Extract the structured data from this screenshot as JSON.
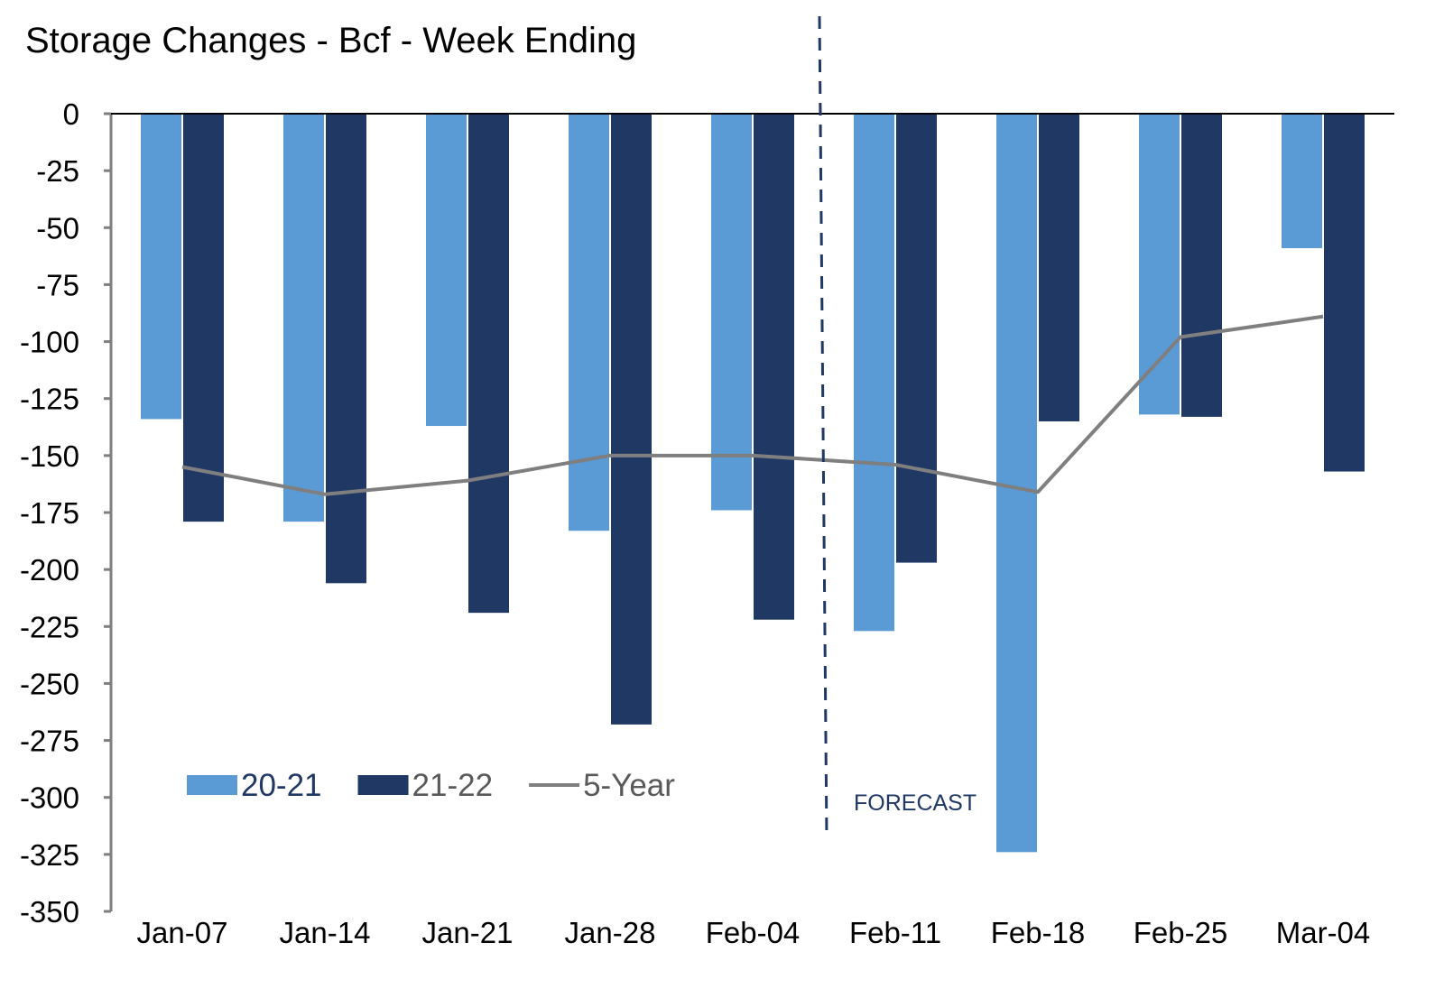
{
  "colors": {
    "series_2021": "#5b9bd5",
    "series_2122": "#203864",
    "five_year": "#7f7f7f",
    "axis": "#7f7f7f",
    "forecast_line": "#203864",
    "text": "#000000"
  },
  "chart_data": {
    "type": "bar",
    "title": "Storage Changes - Bcf - Week Ending",
    "xlabel": "",
    "ylabel": "",
    "ylim": [
      -350,
      0
    ],
    "yticks": [
      0,
      -25,
      -50,
      -75,
      -100,
      -125,
      -150,
      -175,
      -200,
      -225,
      -250,
      -275,
      -300,
      -325,
      -350
    ],
    "grid": false,
    "legend_position": "bottom-left",
    "categories": [
      "Jan-07",
      "Jan-14",
      "Jan-21",
      "Jan-28",
      "Feb-04",
      "Feb-11",
      "Feb-18",
      "Feb-25",
      "Mar-04"
    ],
    "series": [
      {
        "name": "20-21",
        "type": "bar",
        "color": "#5b9bd5",
        "values": [
          -134,
          -179,
          -137,
          -183,
          -174,
          -227,
          -324,
          -132,
          -59
        ]
      },
      {
        "name": "21-22",
        "type": "bar",
        "color": "#203864",
        "values": [
          -179,
          -206,
          -219,
          -268,
          -222,
          -197,
          -135,
          -133,
          -157
        ]
      },
      {
        "name": "5-Year",
        "type": "line",
        "color": "#7f7f7f",
        "values": [
          -155,
          -167,
          -161,
          -150,
          -150,
          -154,
          -166,
          -98,
          -89
        ]
      }
    ],
    "annotations": [
      {
        "text": "FORECAST",
        "type": "vertical-dashed-line",
        "between": [
          "Feb-04",
          "Feb-11"
        ]
      }
    ]
  }
}
